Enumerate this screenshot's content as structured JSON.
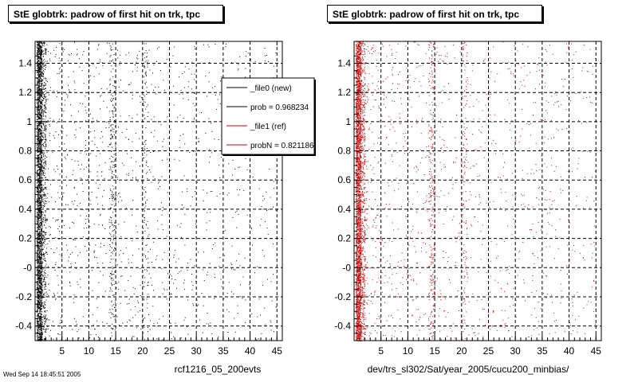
{
  "chart_data": [
    {
      "type": "scatter",
      "title": "StE globtrk: padrow of first hit on trk, tpc",
      "xlabel": "rcf1216_05_200evts",
      "ylabel": "",
      "xlim": [
        0,
        46
      ],
      "ylim": [
        -0.5,
        1.55
      ],
      "x_ticks": [
        "5",
        "10",
        "15",
        "20",
        "25",
        "30",
        "35",
        "40",
        "45"
      ],
      "y_ticks": [
        "-0.4",
        "-0.2",
        "-0",
        "0.2",
        "0.4",
        "0.6",
        "0.8",
        "1",
        "1.2",
        "1.4"
      ],
      "grid": true,
      "series": [
        {
          "name": "_file0 (new)",
          "color": "#000000",
          "dense_bands": [
            [
              0.3,
              2.0
            ],
            [
              13.8,
              15.0
            ],
            [
              20.0,
              21.0
            ]
          ],
          "sparse_range": [
            2,
            45
          ]
        }
      ],
      "legend": {
        "placement": "top-right",
        "entries": [
          {
            "label": "_file0 (new)",
            "color": "#000000"
          },
          {
            "label": "prob = 0.968234",
            "color": "#000000"
          },
          {
            "label": "_file1 (ref)",
            "color": "#cc0000"
          },
          {
            "label": "probN = 0.821186",
            "color": "#cc0000"
          }
        ]
      }
    },
    {
      "type": "scatter",
      "title": "StE globtrk: padrow of first hit on trk, tpc",
      "xlabel": "dev/trs_sl302/Sat/year_2005/cucu200_minbias/",
      "ylabel": "",
      "xlim": [
        0,
        46
      ],
      "ylim": [
        -0.5,
        1.55
      ],
      "x_ticks": [
        "5",
        "10",
        "15",
        "20",
        "25",
        "30",
        "35",
        "40",
        "45"
      ],
      "y_ticks": [
        "-0.4",
        "-0.2",
        "-0",
        "0.2",
        "0.4",
        "0.6",
        "0.8",
        "1",
        "1.2",
        "1.4"
      ],
      "grid": true,
      "series": [
        {
          "name": "_file1 (ref)",
          "color": "#cc0000",
          "dense_bands": [
            [
              0.3,
              2.0
            ],
            [
              13.8,
              15.0
            ],
            [
              20.0,
              21.0
            ]
          ],
          "sparse_range": [
            2,
            45
          ]
        }
      ]
    }
  ],
  "footer": {
    "corner_text": "Wed Sep 14 18:45:51 2005"
  }
}
